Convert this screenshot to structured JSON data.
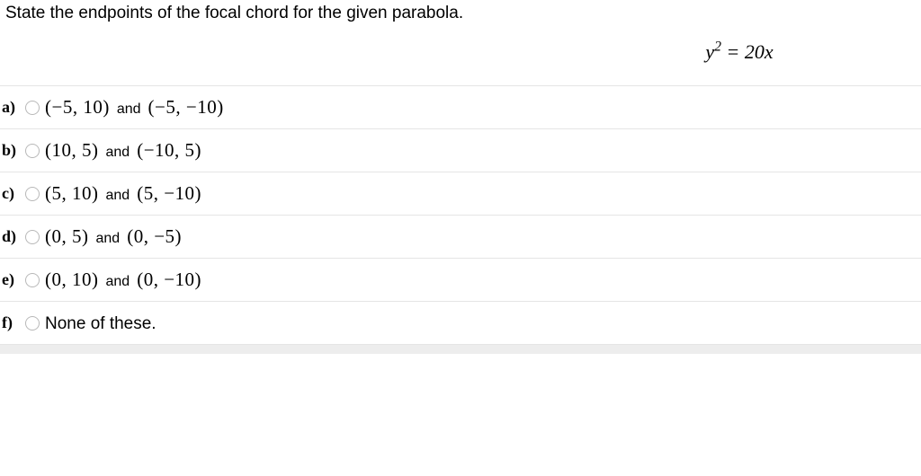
{
  "question": {
    "stem": "State the endpoints of the focal chord for the given parabola.",
    "equation_html": "y<sup>2</sup> = 20<span style='font-style:italic'>x</span>",
    "stem_fontsize": 19,
    "equation_fontsize": 22,
    "equation_color": "#000000",
    "stem_color": "#000000"
  },
  "options": [
    {
      "label": "a)",
      "pair1": "(−5, 10)",
      "pair2": "(−5, −10)",
      "joiner": "and"
    },
    {
      "label": "b)",
      "pair1": "(10, 5)",
      "pair2": "(−10, 5)",
      "joiner": "and"
    },
    {
      "label": "c)",
      "pair1": "(5, 10)",
      "pair2": "(5, −10)",
      "joiner": "and"
    },
    {
      "label": "d)",
      "pair1": "(0, 5)",
      "pair2": "(0, −5)",
      "joiner": "and"
    },
    {
      "label": "e)",
      "pair1": "(0, 10)",
      "pair2": "(0, −10)",
      "joiner": "and"
    },
    {
      "label": "f)",
      "plain": "None of these."
    }
  ],
  "style": {
    "row_border_color": "#e5e5e5",
    "radio_border_color": "#b8b8b8",
    "background_color": "#ffffff",
    "option_fontsize": 21,
    "label_fontsize": 18,
    "and_fontsize": 16,
    "scroll_strip_color": "#ededed"
  }
}
